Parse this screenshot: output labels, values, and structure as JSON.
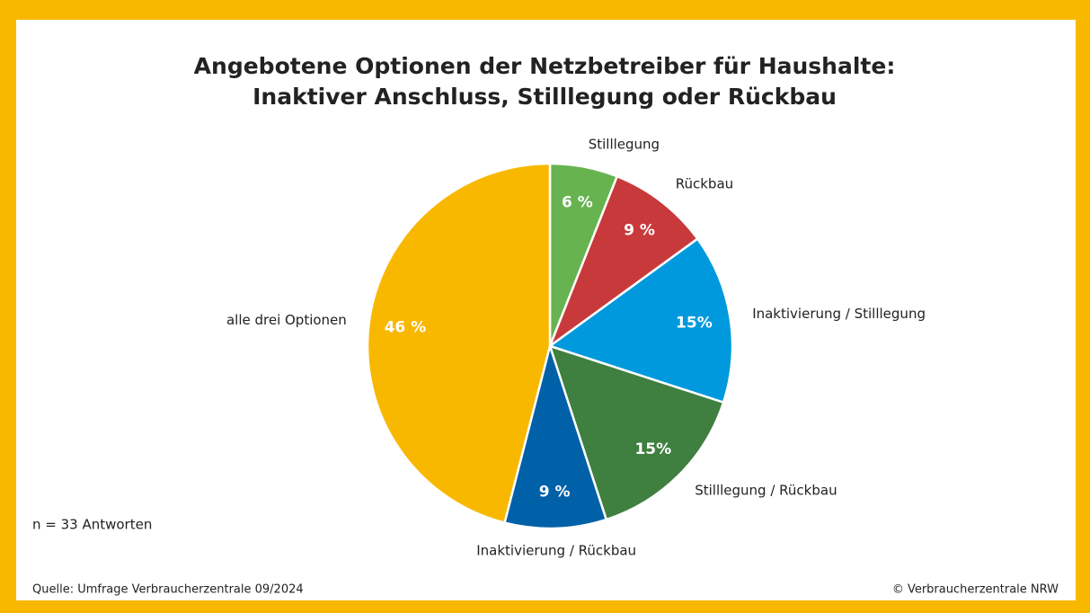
{
  "chart_data": {
    "type": "pie",
    "title": [
      "Angebotene Optionen der Netzbetreiber für Haushalte:",
      "Inaktiver Anschluss, Stilllegung oder Rückbau"
    ],
    "categories": [
      "Stilllegung",
      "Rückbau",
      "Inaktivierung / Stilllegung",
      "Stilllegung / Rückbau",
      "Inaktivierung / Rückbau",
      "alle drei Optionen"
    ],
    "values": [
      6,
      9,
      15,
      15,
      9,
      46
    ],
    "value_labels": [
      "6 %",
      "9 %",
      "15%",
      "15%",
      "9 %",
      "46 %"
    ],
    "colors": [
      "#66b34f",
      "#c8393b",
      "#0099dd",
      "#3f7f3f",
      "#0060a8",
      "#f8b800"
    ],
    "note": "n = 33 Antworten",
    "source": "Quelle: Umfrage Verbraucherzentrale 09/2024",
    "copyright": "© Verbraucherzentrale NRW"
  }
}
